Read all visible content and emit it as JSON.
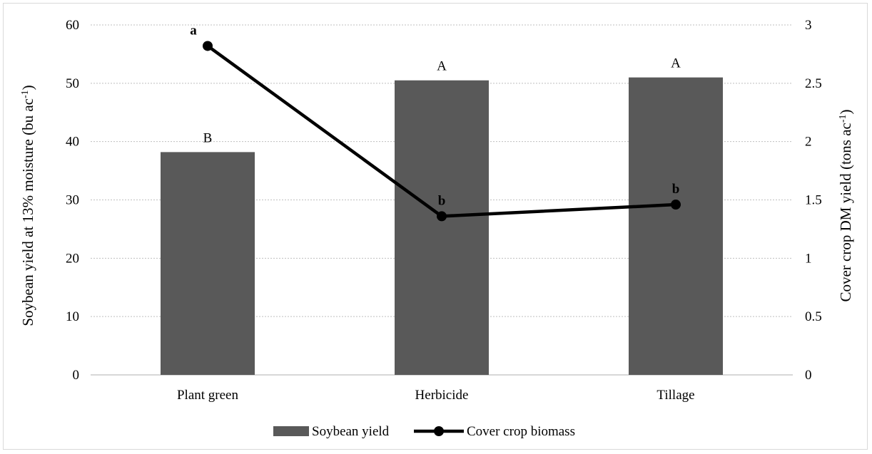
{
  "chart_data": {
    "type": "bar",
    "categories": [
      "Plant green",
      "Herbicide",
      "Tillage"
    ],
    "series": [
      {
        "name": "Soybean yield",
        "kind": "bar",
        "axis": "left",
        "values": [
          38.2,
          50.5,
          51.0
        ],
        "labels": [
          "B",
          "A",
          "A"
        ],
        "color": "#595959"
      },
      {
        "name": "Cover crop biomass",
        "kind": "line",
        "axis": "right",
        "values": [
          2.82,
          1.36,
          1.46
        ],
        "labels": [
          "a",
          "b",
          "b"
        ],
        "color": "#000000"
      }
    ],
    "ylabel": "Soybean yield at 13% moisture (bu ac",
    "ylabel_sup": "-1",
    "ylabel_end": ")",
    "y2label": "Cover crop DM yield (tons ac",
    "y2label_sup": "-1",
    "y2label_end": ")",
    "ylim": [
      0,
      60
    ],
    "y2lim": [
      0,
      3
    ],
    "yticks": [
      "0",
      "10",
      "20",
      "30",
      "40",
      "50",
      "60"
    ],
    "y2ticks": [
      "0",
      "0.5",
      "1",
      "1.5",
      "2",
      "2.5",
      "3"
    ],
    "grid": true,
    "legend_position": "bottom"
  }
}
